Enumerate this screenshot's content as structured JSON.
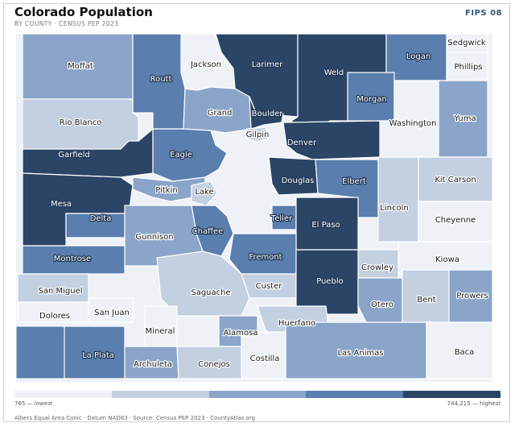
{
  "header": {
    "title": "Colorado Population",
    "subtitle": "BY COUNTY · CENSUS PEP 2023",
    "fips": "FIPS 08"
  },
  "legend": {
    "colors": [
      "#eef2f7",
      "#c3d0e1",
      "#8aa5c9",
      "#5a7ead",
      "#2b4566"
    ],
    "low_label": "765 — lowest",
    "high_label": "744,215 — highest"
  },
  "footnote": "Albers Equal Area Conic · Datum NAD83 · Source: Census PEP 2023 · CountyAtlas.org",
  "counties": [
    {
      "name": "Moffat",
      "shade": 3
    },
    {
      "name": "Jackson",
      "shade": 1
    },
    {
      "name": "Larimer",
      "shade": 5
    },
    {
      "name": "Weld",
      "shade": 5
    },
    {
      "name": "Logan",
      "shade": 4
    },
    {
      "name": "Sedgwick",
      "shade": 1
    },
    {
      "name": "Phillips",
      "shade": 1
    },
    {
      "name": "Routt",
      "shade": 4
    },
    {
      "name": "Morgan",
      "shade": 4
    },
    {
      "name": "Grand",
      "shade": 3
    },
    {
      "name": "Boulder",
      "shade": 5
    },
    {
      "name": "Rio Blanco",
      "shade": 2
    },
    {
      "name": "Washington",
      "shade": 1
    },
    {
      "name": "Yuma",
      "shade": 3
    },
    {
      "name": "Gilpin",
      "shade": 2
    },
    {
      "name": "Denver",
      "shade": 5
    },
    {
      "name": "Garfield",
      "shade": 5
    },
    {
      "name": "Eagle",
      "shade": 4
    },
    {
      "name": "Kit Carson",
      "shade": 2
    },
    {
      "name": "Douglas",
      "shade": 5
    },
    {
      "name": "Elbert",
      "shade": 4
    },
    {
      "name": "Mesa",
      "shade": 5
    },
    {
      "name": "Pitkin",
      "shade": 3
    },
    {
      "name": "Lake",
      "shade": 2
    },
    {
      "name": "Lincoln",
      "shade": 2
    },
    {
      "name": "Cheyenne",
      "shade": 1
    },
    {
      "name": "Delta",
      "shade": 4
    },
    {
      "name": "Chaffee",
      "shade": 4
    },
    {
      "name": "Teller",
      "shade": 4
    },
    {
      "name": "El Paso",
      "shade": 5
    },
    {
      "name": "Gunnison",
      "shade": 3
    },
    {
      "name": "Kiowa",
      "shade": 1
    },
    {
      "name": "Montrose",
      "shade": 4
    },
    {
      "name": "Fremont",
      "shade": 4
    },
    {
      "name": "Crowley",
      "shade": 2
    },
    {
      "name": "San Miguel",
      "shade": 2
    },
    {
      "name": "Custer",
      "shade": 2
    },
    {
      "name": "Pueblo",
      "shade": 5
    },
    {
      "name": "Saguache",
      "shade": 2
    },
    {
      "name": "Dolores",
      "shade": 1
    },
    {
      "name": "San Juan",
      "shade": 1
    },
    {
      "name": "Otero",
      "shade": 3
    },
    {
      "name": "Bent",
      "shade": 2
    },
    {
      "name": "Prowers",
      "shade": 3
    },
    {
      "name": "Mineral",
      "shade": 1
    },
    {
      "name": "Alamosa",
      "shade": 3
    },
    {
      "name": "Huerfano",
      "shade": 2
    },
    {
      "name": "La Plata",
      "shade": 4
    },
    {
      "name": "Las Animas",
      "shade": 3
    },
    {
      "name": "Baca",
      "shade": 1
    },
    {
      "name": "Archuleta",
      "shade": 3
    },
    {
      "name": "Conejos",
      "shade": 2
    },
    {
      "name": "Costilla",
      "shade": 1
    }
  ]
}
